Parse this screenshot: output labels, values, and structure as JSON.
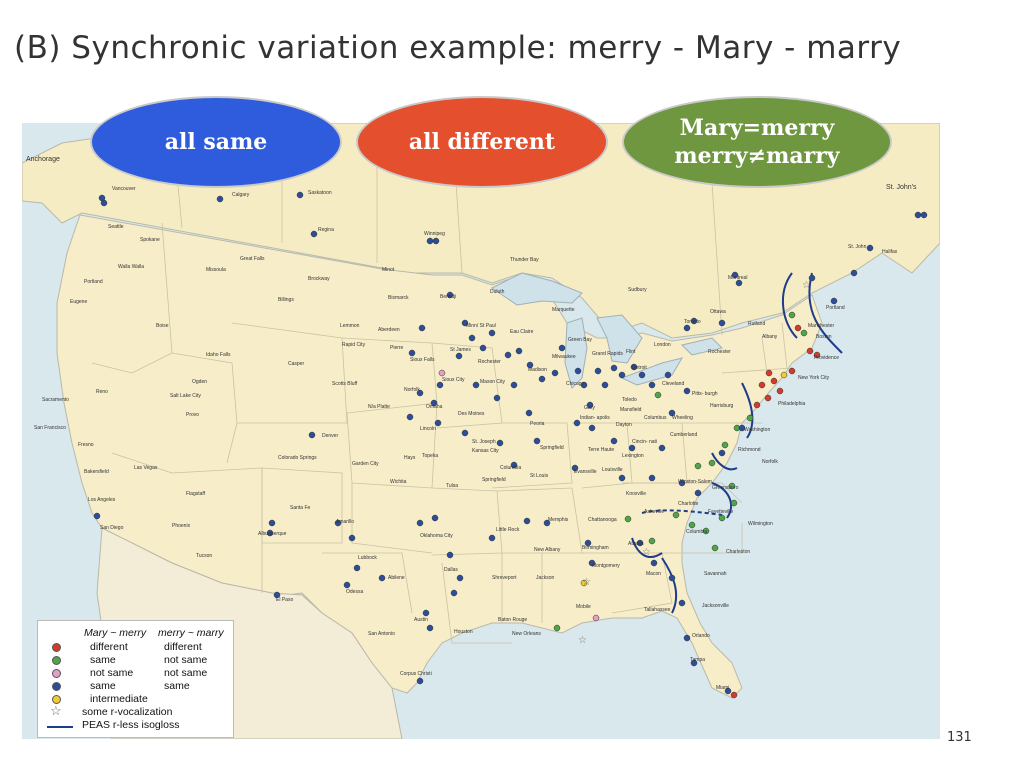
{
  "slide": {
    "title": "(B) Synchronic variation example: merry - Mary - marry",
    "page_number": "131"
  },
  "ovals": [
    {
      "lines": [
        "all same"
      ],
      "color": "#2f5cdc"
    },
    {
      "lines": [
        "all different"
      ],
      "color": "#e4502d"
    },
    {
      "lines": [
        "Mary=merry",
        "merry≠marry"
      ],
      "color": "#6f973f"
    }
  ],
  "map": {
    "labels": {
      "anchorage": "Anchorage",
      "st_johns": "St. John's",
      "vancouver": "Vancouver",
      "calgary": "Calgary",
      "saskatoon": "Saskatoon",
      "seattle": "Seattle",
      "regina": "Regina",
      "winnipeg": "Winnipeg",
      "spokane": "Spokane",
      "great_falls": "Great Falls",
      "minot": "Minot",
      "thunder_bay": "Thunder Bay",
      "walla_walla": "Walla Walla",
      "missoula": "Missoula",
      "brockway": "Brockway",
      "duluth": "Duluth",
      "portland_or": "Portland",
      "billings": "Billings",
      "bismarck": "Bismarck",
      "bemidji": "Bemidji",
      "marquette": "Marquette",
      "sudbury": "Sudbury",
      "montreal": "Montreal",
      "halifax": "Halifax",
      "st_john": "St. John",
      "eugene": "Eugene",
      "boise": "Boise",
      "lemmon": "Lemmon",
      "aberdeen": "Aberdeen",
      "minneapolis": "Minn/ St Paul",
      "eau_claire": "Eau Claire",
      "toronto": "Toronto",
      "ottawa": "Ottawa",
      "rutland": "Rutland",
      "manchester": "Manchester",
      "portland_me": "Portland",
      "rapid_city": "Rapid City",
      "pierre": "Pierre",
      "st_james": "St James",
      "green_bay": "Green Bay",
      "boston": "Boston",
      "albany": "Albany",
      "providence": "Providence",
      "idaho_falls": "Idaho Falls",
      "sioux_falls": "Sioux Falls",
      "rochester_mn": "Rochester",
      "milwaukee": "Milwaukee",
      "grand_rapids": "Grand Rapids",
      "flint": "Flint",
      "london": "London",
      "rochester_ny": "Rochester",
      "new_york": "New York City",
      "casper": "Casper",
      "sioux_city": "Sioux City",
      "mason_city": "Mason City",
      "madison": "Madison",
      "chicago": "Chicago",
      "detroit": "Detroit",
      "cleveland": "Cleveland",
      "reno": "Reno",
      "ogden": "Ogden",
      "salt_lake": "Salt Lake City",
      "scotts_bluff": "Scotts Bluff",
      "norfolk_ne": "Norfolk",
      "omaha": "Omaha",
      "des_moines": "Des Moines",
      "toledo": "Toledo",
      "mansfield": "Mansfield",
      "pittsburgh": "Pitts- burgh",
      "harrisburg": "Harrisburg",
      "philadelphia": "Philadelphia",
      "sacramento": "Sacramento",
      "provo": "Provo",
      "north_platte": "N/a Platte",
      "lincoln": "Lincoln",
      "peoria": "Peoria",
      "gary": "Gary",
      "indianapolis": "Indian- apolis",
      "columbus": "Columbus",
      "dayton": "Dayton",
      "wheeling": "Wheeling",
      "cumberland": "Cumberland",
      "washington": "Washington",
      "san_francisco": "San Francisco",
      "denver": "Denver",
      "st_joseph": "St. Joseph",
      "kansas_city": "Kansas City",
      "springfield_il": "Springfield",
      "cincinnati": "Cincin- nati",
      "fresno": "Fresno",
      "colorado_springs": "Colorado Springs",
      "garden_city": "Garden City",
      "hays": "Hays",
      "topeka": "Topeka",
      "columbia": "Columbia",
      "st_louis": "St Louis",
      "terre_haute": "Terre Haute",
      "lexington": "Lexington",
      "richmond": "Richmond",
      "norfolk_va": "Norfolk",
      "bakersfield": "Bakersfield",
      "las_vegas": "Las Vegas",
      "wichita": "Wichita",
      "tulsa": "Tulsa",
      "springfield_mo": "Springfield",
      "evansville": "Evansville",
      "louisville": "Louisville",
      "knoxville": "Knoxville",
      "winston_salem": "Winston-Salem",
      "greensboro": "Greensboro",
      "los_angeles": "Los Angeles",
      "flagstaff": "Flagstaff",
      "santa_fe": "Santa Fe",
      "amarillo": "Amarillo",
      "oklahoma_city": "Oklahoma City",
      "little_rock": "Little Rock",
      "memphis": "Memphis",
      "chattanooga": "Chattanooga",
      "asheville": "Asheville",
      "charlotte": "Charlotte",
      "fayetteville": "Fayetteville",
      "wilmington": "Wilmington",
      "san_diego": "San Diego",
      "phoenix": "Phoenix",
      "albuquerque": "Albuquerque",
      "lubbock": "Lubbock",
      "abilene": "Abilene",
      "dallas": "Dallas",
      "shreveport": "Shreveport",
      "new_albany": "New Albany",
      "birmingham": "Birmingham",
      "atlanta": "Atlanta",
      "columbia_sc": "Columbia",
      "charleston": "Charleston",
      "tucson": "Tucson",
      "el_paso": "El Paso",
      "odessa": "Odessa",
      "jackson": "Jackson",
      "montgomery": "Montgomery",
      "macon": "Macon",
      "savannah": "Savannah",
      "austin": "Austin",
      "baton_rouge": "Baton Rouge",
      "mobile": "Mobile",
      "jacksonville": "Jacksonville",
      "tallahassee": "Tallahassee",
      "san_antonio": "San Antonio",
      "houston": "Houston",
      "new_orleans": "New Orleans",
      "orlando": "Orlando",
      "tampa": "Tampa",
      "corpus_christi": "Corpus Christi",
      "miami": "Miami"
    }
  },
  "legend": {
    "header_col1": "Mary ~ merry",
    "header_col2": "merry ~ marry",
    "rows": [
      {
        "symbol": "dot",
        "color": "#d33b2c",
        "col1": "different",
        "col2": "different"
      },
      {
        "symbol": "dot",
        "color": "#4fa547",
        "col1": "same",
        "col2": "not same"
      },
      {
        "symbol": "dot",
        "color": "#e39fc6",
        "col1": "not same",
        "col2": "not same"
      },
      {
        "symbol": "dot",
        "color": "#2b4d9a",
        "col1": "same",
        "col2": "same"
      },
      {
        "symbol": "dot",
        "color": "#f2cb30",
        "col1": "intermediate",
        "col2": ""
      },
      {
        "symbol": "star",
        "color": "#777777",
        "col1": "some r-vocalization",
        "col2": ""
      },
      {
        "symbol": "line",
        "color": "#1d3c8c",
        "col1": "PEAS r-less isogloss",
        "col2": ""
      }
    ]
  }
}
